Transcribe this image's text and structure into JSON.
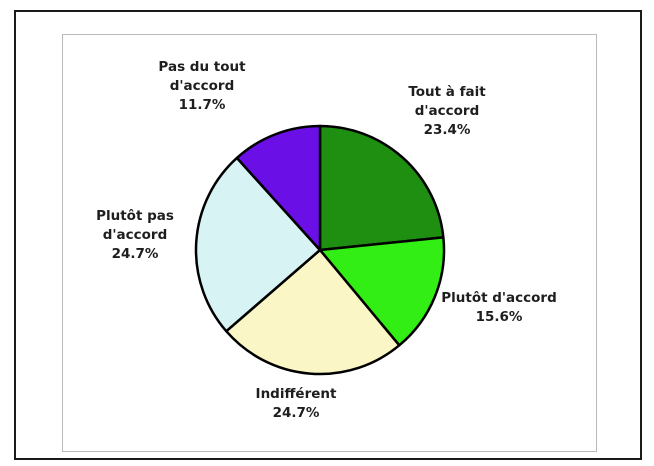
{
  "chart_data": {
    "type": "pie",
    "title": "",
    "slices": [
      {
        "label": [
          "Tout à fait",
          "d'accord"
        ],
        "percent_label": "23.4%",
        "value": 23.4,
        "color": "#1f8f12"
      },
      {
        "label": [
          "Plutôt d'accord"
        ],
        "percent_label": "15.6%",
        "value": 15.6,
        "color": "#33ee14"
      },
      {
        "label": [
          "Indifférent"
        ],
        "percent_label": "24.7%",
        "value": 24.7,
        "color": "#fbf6c6"
      },
      {
        "label": [
          "Plutôt pas",
          "d'accord"
        ],
        "percent_label": "24.7%",
        "value": 24.7,
        "color": "#d8f3f3"
      },
      {
        "label": [
          "Pas du tout",
          "d'accord"
        ],
        "percent_label": "11.7%",
        "value": 11.7,
        "color": "#6a10e6"
      }
    ],
    "start_angle": "12 o'clock",
    "direction": "clockwise",
    "slice_outline_color": "#000000"
  }
}
